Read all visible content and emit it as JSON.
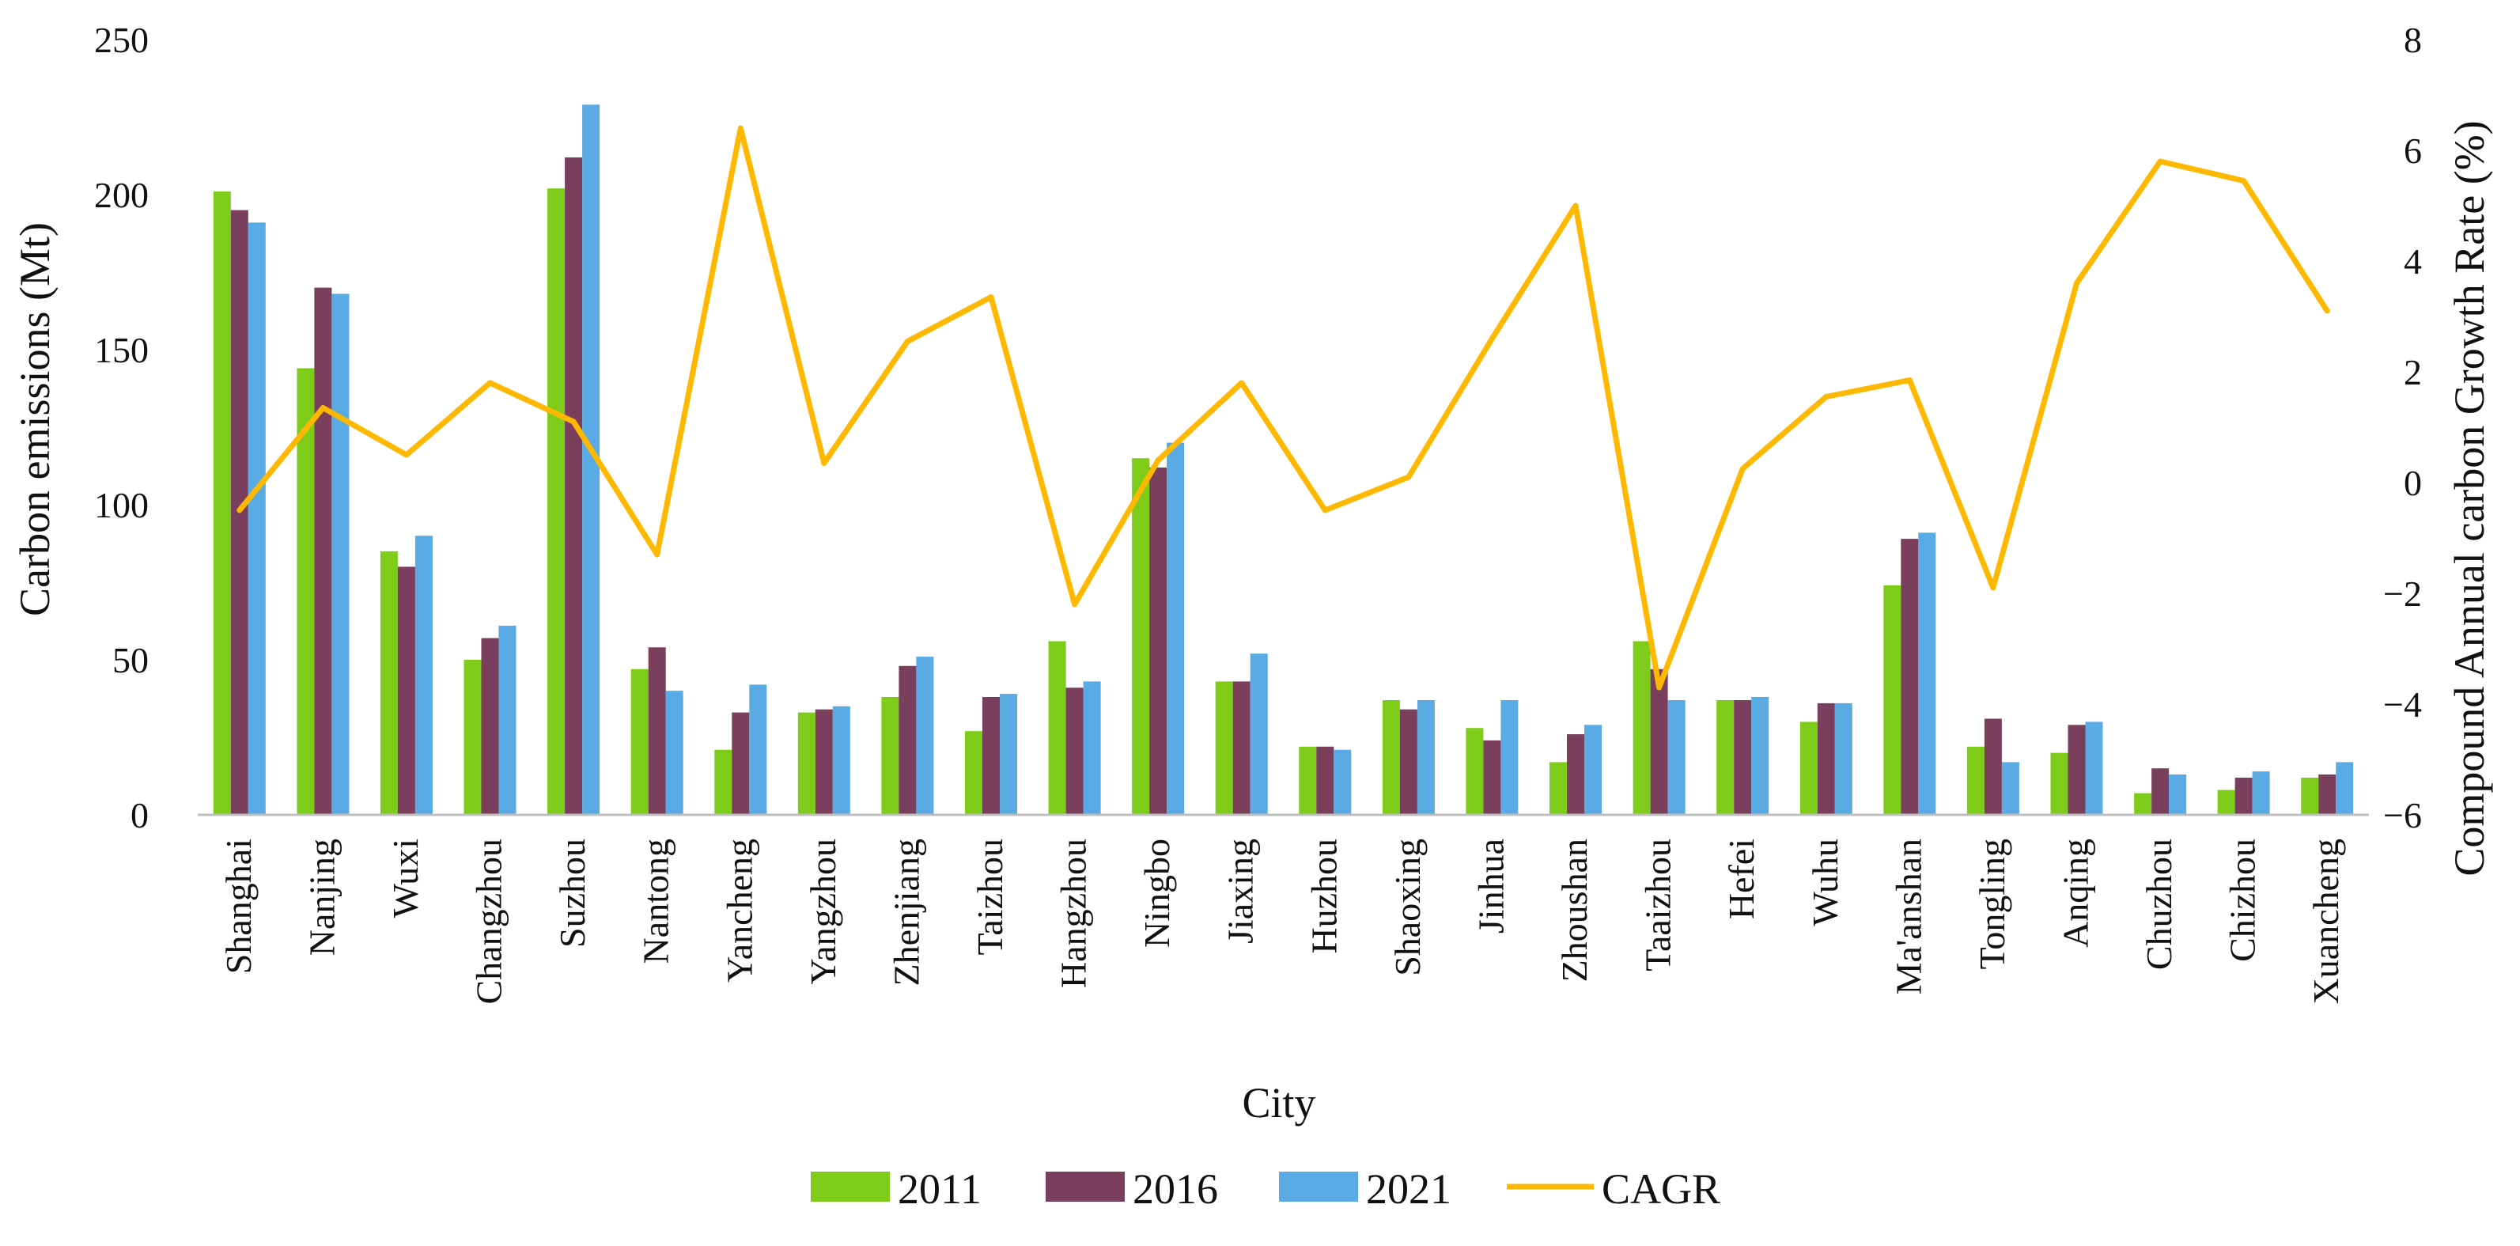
{
  "chart_data": {
    "type": "bar",
    "title": "",
    "xlabel": "City",
    "ylabel": "Carbon emissions (Mt)",
    "y2label": "Compound Annual carbon Growth Rate (%)",
    "ylim": [
      0,
      250
    ],
    "y2lim": [
      -6,
      8
    ],
    "yticks": [
      "0",
      "50",
      "100",
      "150",
      "200",
      "250"
    ],
    "y2ticks": [
      "−6",
      "−4",
      "−2",
      "0",
      "2",
      "4",
      "6",
      "8"
    ],
    "y2tick_values": [
      -6,
      -4,
      -2,
      0,
      2,
      4,
      6,
      8
    ],
    "categories": [
      "Shanghai",
      "Nanjing",
      "Wuxi",
      "Changzhou",
      "Suzhou",
      "Nantong",
      "Yancheng",
      "Yangzhou",
      "Zhenjiang",
      "Taizhou",
      "Hangzhou",
      "Ningbo",
      "Jiaxing",
      "Huzhou",
      "Shaoxing",
      "Jinhua",
      "Zhoushan",
      "Taaizhou",
      "Hefei",
      "Wuhu",
      "Ma'anshan",
      "Tongling",
      "Anqing",
      "Chuzhou",
      "Chizhou",
      "Xuancheng"
    ],
    "series": [
      {
        "name": "2011",
        "color": "#7ecb1a",
        "values": [
          201,
          144,
          85,
          50,
          202,
          47,
          21,
          33,
          38,
          27,
          56,
          115,
          43,
          22,
          37,
          28,
          17,
          56,
          37,
          30,
          74,
          22,
          20,
          7,
          8,
          12
        ]
      },
      {
        "name": "2016",
        "color": "#7b3f5e",
        "values": [
          195,
          170,
          80,
          57,
          212,
          54,
          33,
          34,
          48,
          38,
          41,
          112,
          43,
          22,
          34,
          24,
          26,
          47,
          37,
          36,
          89,
          31,
          29,
          15,
          12,
          13
        ]
      },
      {
        "name": "2021",
        "color": "#5aabe3",
        "values": [
          191,
          168,
          90,
          61,
          229,
          40,
          42,
          35,
          51,
          39,
          43,
          120,
          52,
          21,
          37,
          37,
          29,
          37,
          38,
          36,
          91,
          17,
          30,
          13,
          14,
          17
        ]
      }
    ],
    "line_series": {
      "name": "CAGR",
      "color": "#ffb800",
      "axis": "y2",
      "values": [
        -0.5,
        1.35,
        0.5,
        1.8,
        1.1,
        -1.3,
        6.4,
        0.35,
        2.55,
        3.35,
        -2.2,
        0.4,
        1.8,
        -0.5,
        0.1,
        2.6,
        5.0,
        -3.7,
        0.25,
        1.55,
        1.85,
        -1.9,
        3.6,
        5.8,
        5.45,
        3.1
      ]
    },
    "legend": {
      "placement": "bottom",
      "items": [
        "2011",
        "2016",
        "2021",
        "CAGR"
      ]
    },
    "grid": false
  }
}
